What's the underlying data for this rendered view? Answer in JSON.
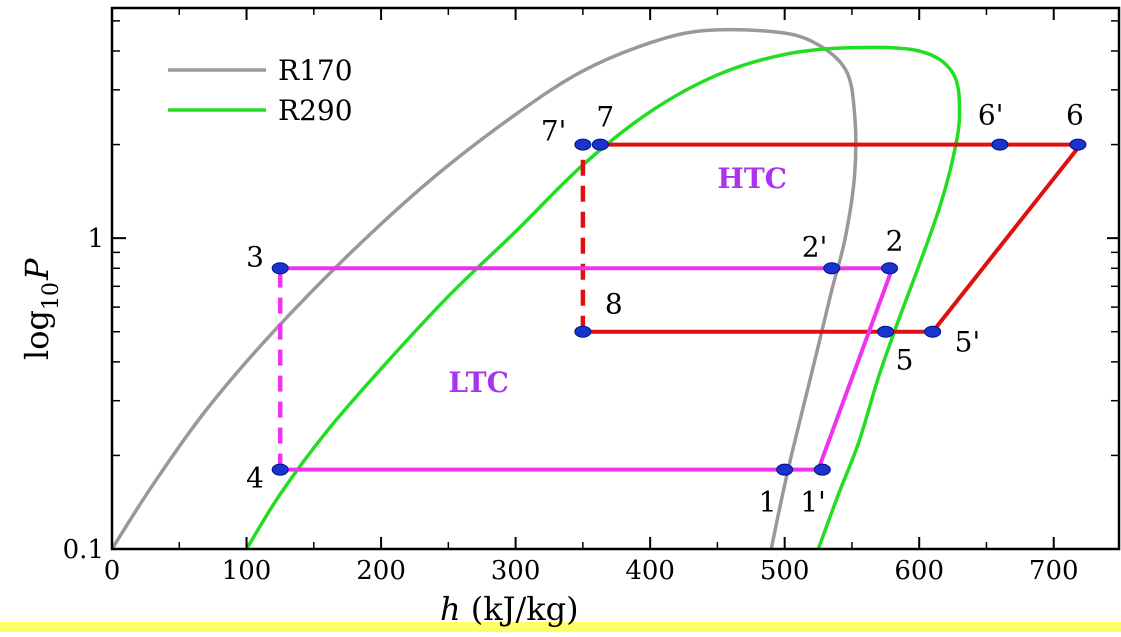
{
  "chart_data": {
    "type": "line",
    "title": "",
    "xlabel": {
      "symbol": "h",
      "unit": " (kJ/kg)"
    },
    "ylabel": {
      "base": "log",
      "sub": "10",
      "var": "P"
    },
    "xlim": [
      0,
      750
    ],
    "ylim": [
      0.1,
      5.5
    ],
    "y_scale": "log",
    "grid": false,
    "x_ticks": [
      0,
      100,
      200,
      300,
      400,
      500,
      600,
      700
    ],
    "x_tick_labels": [
      "0",
      "100",
      "200",
      "300",
      "400",
      "500",
      "600",
      "700"
    ],
    "y_ticks": [
      0.1,
      1
    ],
    "y_tick_labels": [
      "0.1",
      "1"
    ],
    "legend": {
      "position": "top-left",
      "entries": [
        {
          "name": "R170",
          "color": "#999999"
        },
        {
          "name": "R290",
          "color": "#22dd22"
        }
      ]
    },
    "saturation_domes": [
      {
        "name": "R170",
        "color": "#999999",
        "points": [
          [
            0,
            0.1
          ],
          [
            30,
            0.16
          ],
          [
            70,
            0.28
          ],
          [
            120,
            0.5
          ],
          [
            180,
            0.92
          ],
          [
            240,
            1.58
          ],
          [
            300,
            2.5
          ],
          [
            350,
            3.45
          ],
          [
            400,
            4.25
          ],
          [
            440,
            4.65
          ],
          [
            490,
            4.62
          ],
          [
            520,
            4.3
          ],
          [
            545,
            3.5
          ],
          [
            552,
            2.5
          ],
          [
            552,
            1.6
          ],
          [
            545,
            1.0
          ],
          [
            535,
            0.68
          ],
          [
            525,
            0.45
          ],
          [
            515,
            0.3
          ],
          [
            505,
            0.2
          ],
          [
            497,
            0.14
          ],
          [
            490,
            0.1
          ]
        ]
      },
      {
        "name": "R290",
        "color": "#22dd22",
        "points": [
          [
            100,
            0.1
          ],
          [
            125,
            0.15
          ],
          [
            160,
            0.24
          ],
          [
            200,
            0.38
          ],
          [
            250,
            0.65
          ],
          [
            300,
            1.05
          ],
          [
            350,
            1.72
          ],
          [
            400,
            2.55
          ],
          [
            450,
            3.35
          ],
          [
            500,
            3.9
          ],
          [
            550,
            4.1
          ],
          [
            600,
            4.0
          ],
          [
            625,
            3.4
          ],
          [
            630,
            2.5
          ],
          [
            625,
            1.8
          ],
          [
            615,
            1.25
          ],
          [
            600,
            0.82
          ],
          [
            585,
            0.55
          ],
          [
            570,
            0.36
          ],
          [
            555,
            0.22
          ],
          [
            540,
            0.15
          ],
          [
            525,
            0.1
          ]
        ]
      }
    ],
    "cycles": [
      {
        "name": "HTC",
        "label": "HTC",
        "label_color": "#aa33ee",
        "label_pos": [
          450,
          1.45
        ],
        "line_color": "#dd1111",
        "solid_paths": [
          [
            [
              360,
              2.0
            ],
            [
              720,
              2.0
            ],
            [
              610,
              0.5
            ],
            [
              350,
              0.5
            ]
          ]
        ],
        "dashed_paths": [
          [
            [
              350,
              0.5
            ],
            [
              350,
              2.0
            ]
          ]
        ],
        "points": [
          {
            "label": "7'",
            "h": 350,
            "P": 2.0,
            "dx": -42,
            "dy": -4
          },
          {
            "label": "7",
            "h": 363,
            "P": 2.0,
            "dx": -4,
            "dy": -18
          },
          {
            "label": "6'",
            "h": 660,
            "P": 2.0,
            "dx": -22,
            "dy": -20
          },
          {
            "label": "6",
            "h": 718,
            "P": 2.0,
            "dx": -12,
            "dy": -20
          },
          {
            "label": "8",
            "h": 350,
            "P": 0.5,
            "dx": 22,
            "dy": -18
          },
          {
            "label": "5",
            "h": 575,
            "P": 0.5,
            "dx": 10,
            "dy": 38
          },
          {
            "label": "5'",
            "h": 610,
            "P": 0.5,
            "dx": 22,
            "dy": 20
          }
        ]
      },
      {
        "name": "LTC",
        "label": "LTC",
        "label_color": "#aa33ee",
        "label_pos": [
          250,
          0.32
        ],
        "line_color": "#ee33ee",
        "solid_paths": [
          [
            [
              125,
              0.8
            ],
            [
              580,
              0.8
            ],
            [
              525,
              0.18
            ],
            [
              125,
              0.18
            ]
          ]
        ],
        "dashed_paths": [
          [
            [
              125,
              0.18
            ],
            [
              125,
              0.8
            ]
          ]
        ],
        "points": [
          {
            "label": "3",
            "h": 125,
            "P": 0.8,
            "dx": -34,
            "dy": -2
          },
          {
            "label": "2'",
            "h": 535,
            "P": 0.8,
            "dx": -30,
            "dy": -12
          },
          {
            "label": "2",
            "h": 578,
            "P": 0.8,
            "dx": -4,
            "dy": -18
          },
          {
            "label": "4",
            "h": 125,
            "P": 0.18,
            "dx": -34,
            "dy": 18
          },
          {
            "label": "1",
            "h": 500,
            "P": 0.18,
            "dx": -26,
            "dy": 42
          },
          {
            "label": "1'",
            "h": 528,
            "P": 0.18,
            "dx": -22,
            "dy": 42
          }
        ]
      }
    ]
  }
}
